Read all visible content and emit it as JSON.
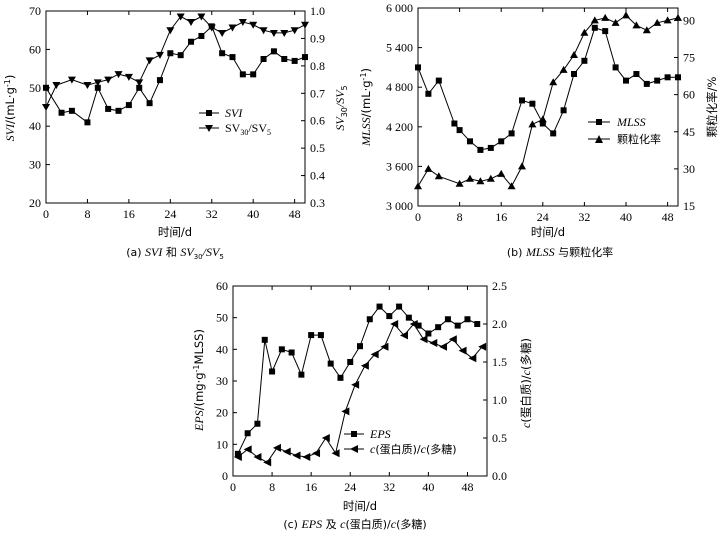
{
  "chart_data": [
    {
      "id": "a",
      "type": "line",
      "caption": "(a) SVI 和 SV30/SV5",
      "xlabel": "时间/d",
      "ylabel_left": "SVI/(mL·g⁻¹)",
      "ylabel_right": "SV30/SV5",
      "xlim": [
        0,
        50
      ],
      "ylim_left": [
        20,
        70
      ],
      "ylim_right": [
        0.3,
        1.0
      ],
      "xticks": [
        0,
        8,
        16,
        24,
        32,
        40,
        48
      ],
      "yticks_left": [
        20,
        30,
        40,
        50,
        60,
        70
      ],
      "yticks_right": [
        0.3,
        0.4,
        0.5,
        0.6,
        0.7,
        0.8,
        0.9,
        1.0
      ],
      "series": [
        {
          "name": "SVI",
          "axis": "left",
          "marker": "square",
          "x": [
            0,
            3,
            5,
            8,
            10,
            12,
            14,
            16,
            18,
            20,
            22,
            24,
            26,
            28,
            30,
            32,
            34,
            36,
            38,
            40,
            42,
            44,
            46,
            48,
            50
          ],
          "values": [
            50,
            43.5,
            44,
            41,
            50,
            44.5,
            44,
            45.5,
            50,
            46,
            52,
            59,
            58.5,
            62,
            63.5,
            66,
            59,
            58,
            53.5,
            53.5,
            57.5,
            59.5,
            57.5,
            57,
            58
          ]
        },
        {
          "name": "SV30/SV5",
          "axis": "right",
          "marker": "triangle-down",
          "x": [
            0,
            2,
            5,
            8,
            10,
            12,
            14,
            16,
            18,
            20,
            22,
            24,
            26,
            28,
            30,
            32,
            34,
            36,
            38,
            40,
            42,
            44,
            46,
            48,
            50
          ],
          "values": [
            0.65,
            0.73,
            0.75,
            0.73,
            0.74,
            0.75,
            0.77,
            0.76,
            0.74,
            0.82,
            0.84,
            0.93,
            0.98,
            0.96,
            0.98,
            0.94,
            0.92,
            0.94,
            0.96,
            0.95,
            0.93,
            0.92,
            0.92,
            0.93,
            0.95
          ]
        }
      ]
    },
    {
      "id": "b",
      "type": "line",
      "caption": "(b) MLSS 与颗粒化率",
      "xlabel": "时间/d",
      "ylabel_left": "MLSS/(mL·g⁻¹)",
      "ylabel_right": "颗粒化率/%",
      "xlim": [
        0,
        50
      ],
      "ylim_left": [
        3000,
        6000
      ],
      "ylim_right": [
        15,
        95
      ],
      "xticks": [
        0,
        8,
        16,
        24,
        32,
        40,
        48
      ],
      "yticks_left": [
        3000,
        3600,
        4200,
        4800,
        5400,
        6000
      ],
      "yticks_left_labels": [
        "3 000",
        "3 600",
        "4 200",
        "4 800",
        "5 400",
        "6 000"
      ],
      "yticks_right": [
        15,
        30,
        45,
        60,
        75,
        90
      ],
      "series": [
        {
          "name": "MLSS",
          "axis": "left",
          "marker": "square",
          "x": [
            0,
            2,
            4,
            7,
            8,
            10,
            12,
            14,
            16,
            18,
            20,
            22,
            24,
            26,
            28,
            30,
            32,
            34,
            36,
            38,
            40,
            42,
            44,
            46,
            48,
            50
          ],
          "values": [
            5100,
            4700,
            4900,
            4250,
            4150,
            3980,
            3850,
            3880,
            3980,
            4100,
            4600,
            4550,
            4250,
            4100,
            4450,
            5000,
            5200,
            5700,
            5650,
            5100,
            4900,
            5000,
            4850,
            4900,
            4950,
            4950
          ]
        },
        {
          "name": "颗粒化率",
          "axis": "right",
          "marker": "triangle-up",
          "x": [
            0,
            2,
            4,
            8,
            10,
            12,
            14,
            16,
            18,
            20,
            22,
            24,
            26,
            28,
            30,
            32,
            34,
            36,
            38,
            40,
            42,
            44,
            46,
            48,
            50
          ],
          "values": [
            23,
            30,
            27,
            24,
            26,
            25,
            26,
            28,
            23,
            31,
            48,
            50,
            65,
            70,
            76,
            85,
            90,
            91,
            89,
            92,
            88,
            86,
            89,
            90,
            91
          ]
        }
      ]
    },
    {
      "id": "c",
      "type": "line",
      "caption": "(c) EPS 及 c(蛋白质)/c(多糖)",
      "xlabel": "时间/d",
      "ylabel_left": "EPS/(mg·g⁻¹MLSS)",
      "ylabel_right": "c(蛋白质)/c(多糖)",
      "xlim": [
        0,
        52
      ],
      "ylim_left": [
        0,
        60
      ],
      "ylim_right": [
        0,
        2.5
      ],
      "xticks": [
        0,
        8,
        16,
        24,
        32,
        40,
        48
      ],
      "yticks_left": [
        0,
        10,
        20,
        30,
        40,
        50,
        60
      ],
      "yticks_right": [
        0,
        0.5,
        1.0,
        1.5,
        2.0,
        2.5
      ],
      "series": [
        {
          "name": "EPS",
          "axis": "left",
          "marker": "square",
          "x": [
            1,
            3,
            5,
            6.5,
            8,
            10,
            12,
            14,
            16,
            18,
            20,
            22,
            24,
            26,
            28,
            30,
            32,
            34,
            36,
            38,
            40,
            42,
            44,
            46,
            48,
            50
          ],
          "values": [
            7,
            13.5,
            16.5,
            43,
            33,
            40,
            39,
            32,
            44.5,
            44.5,
            35.5,
            31,
            36,
            41,
            49.5,
            53.5,
            50.5,
            53.5,
            50,
            47.5,
            45,
            47,
            49.5,
            47.5,
            49.5,
            48
          ]
        },
        {
          "name": "c(蛋白质)/c(多糖)",
          "axis": "right",
          "marker": "triangle-left",
          "x": [
            1,
            3,
            5,
            7,
            9,
            11,
            13,
            15,
            17,
            19,
            21,
            23,
            25,
            27,
            29,
            31,
            33,
            35,
            37,
            39,
            41,
            43,
            45,
            47,
            49,
            51
          ],
          "values": [
            0.25,
            0.35,
            0.25,
            0.18,
            0.37,
            0.32,
            0.27,
            0.25,
            0.3,
            0.5,
            0.3,
            0.85,
            1.2,
            1.45,
            1.6,
            1.7,
            2.0,
            1.85,
            2.0,
            1.8,
            1.75,
            1.7,
            1.8,
            1.65,
            1.55,
            1.7
          ]
        }
      ]
    }
  ]
}
